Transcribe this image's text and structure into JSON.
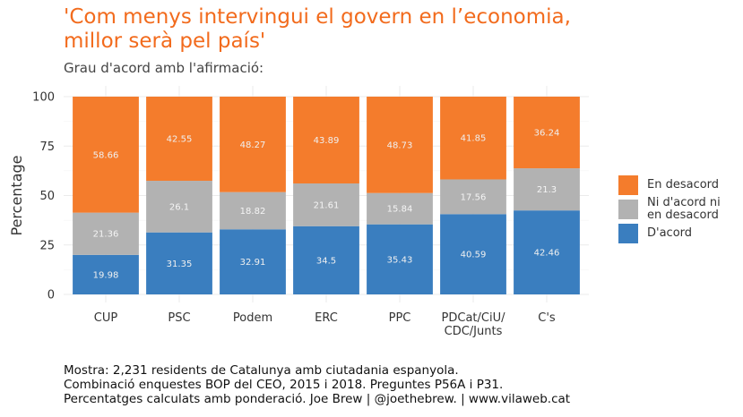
{
  "chart_data": {
    "type": "bar",
    "stacked": true,
    "title": "'Com menys intervingui el govern en l’economia,\nmillor serà pel país'",
    "subtitle": "Grau d'acord amb l'afirmació:",
    "xlabel": "",
    "ylabel": "Percentage",
    "ylim": [
      0,
      100
    ],
    "yticks": [
      0,
      25,
      50,
      75,
      100
    ],
    "grid": true,
    "legend_position": "right",
    "categories": [
      "CUP",
      "PSC",
      "Podem",
      "ERC",
      "PPC",
      "PDCat/CiU/\nCDC/Junts",
      "C's"
    ],
    "series": [
      {
        "name": "D'acord",
        "color": "#3a7ebf",
        "values": [
          19.98,
          31.35,
          32.91,
          34.5,
          35.43,
          40.59,
          42.46
        ]
      },
      {
        "name": "Ni d'acord ni\nen desacord",
        "color": "#b2b2b2",
        "values": [
          21.36,
          26.1,
          18.82,
          21.61,
          15.84,
          17.56,
          21.3
        ]
      },
      {
        "name": "En desacord",
        "color": "#f47c2c",
        "values": [
          58.66,
          42.55,
          48.27,
          43.89,
          48.73,
          41.85,
          36.24
        ]
      }
    ]
  },
  "legend_order": [
    "En desacord",
    "Ni d'acord ni\nen desacord",
    "D'acord"
  ],
  "legend_colors": [
    "#f47c2c",
    "#b2b2b2",
    "#3a7ebf"
  ],
  "caption": [
    "Mostra: 2,231 residents de Catalunya amb ciutadania espanyola.",
    "Combinació enquestes BOP del CEO, 2015 i 2018. Preguntes P56A i P31.",
    "Percentatges calculats amb ponderació. Joe Brew | @joethebrew. | www.vilaweb.cat"
  ]
}
